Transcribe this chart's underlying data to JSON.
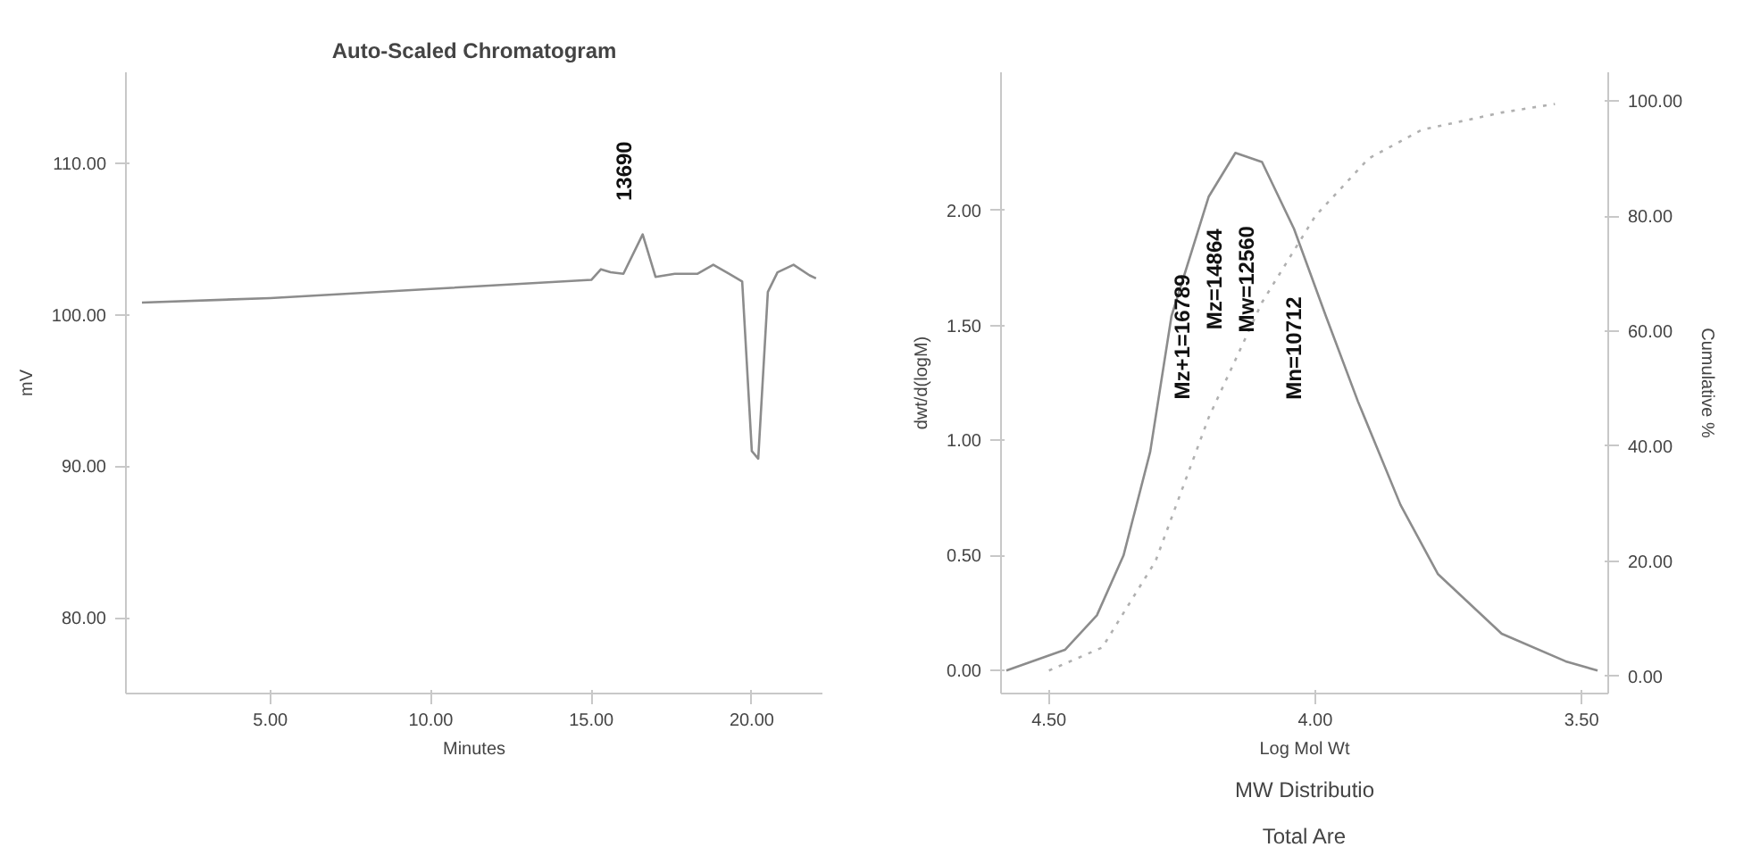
{
  "chart_data": [
    {
      "type": "line",
      "title": "Auto-Scaled Chromatogram",
      "xlabel": "Minutes",
      "ylabel": "mV",
      "xlim": [
        0.5,
        22.2
      ],
      "ylim": [
        75,
        116
      ],
      "xticks": [
        {
          "value": 5,
          "label": "5.00"
        },
        {
          "value": 10,
          "label": "10.00"
        },
        {
          "value": 15,
          "label": "15.00"
        },
        {
          "value": 20,
          "label": "20.00"
        }
      ],
      "yticks": [
        {
          "value": 80,
          "label": "80.00"
        },
        {
          "value": 90,
          "label": "90.00"
        },
        {
          "value": 100,
          "label": "100.00"
        },
        {
          "value": 110,
          "label": "110.00"
        }
      ],
      "grid": false,
      "marker": "none",
      "line_style": "solid",
      "series": [
        {
          "color": "#8c8c8c",
          "x": [
            1.0,
            5.0,
            10.0,
            15.0,
            15.3,
            15.6,
            16.0,
            16.6,
            17.0,
            17.6,
            18.3,
            18.8,
            19.3,
            19.7,
            20.0,
            20.2,
            20.5,
            20.8,
            21.3,
            21.8,
            22.0
          ],
          "values": [
            100.8,
            101.1,
            101.7,
            102.3,
            103.0,
            102.8,
            102.7,
            105.3,
            102.5,
            102.7,
            102.7,
            103.3,
            102.7,
            102.2,
            91.0,
            90.5,
            101.5,
            102.8,
            103.3,
            102.6,
            102.4
          ]
        }
      ],
      "annotations": [
        "13690"
      ]
    },
    {
      "type": "line",
      "xlabel": "Log Mol Wt",
      "ylabel": "dwt/d(logM)",
      "y2label": "Cumulative %",
      "xlim": [
        4.59,
        3.45
      ],
      "ylim": [
        -0.1,
        2.6
      ],
      "y2lim": [
        -3,
        105
      ],
      "xticks": [
        {
          "value": 4.5,
          "label": "4.50"
        },
        {
          "value": 4.0,
          "label": "4.00"
        },
        {
          "value": 3.5,
          "label": "3.50"
        }
      ],
      "yticks": [
        {
          "value": 0,
          "label": "0.00"
        },
        {
          "value": 0.5,
          "label": "0.50"
        },
        {
          "value": 1.0,
          "label": "1.00"
        },
        {
          "value": 1.5,
          "label": "1.50"
        },
        {
          "value": 2.0,
          "label": "2.00"
        }
      ],
      "y2ticks": [
        {
          "value": 0,
          "label": "0.00"
        },
        {
          "value": 20,
          "label": "20.00"
        },
        {
          "value": 40,
          "label": "40.00"
        },
        {
          "value": 60,
          "label": "60.00"
        },
        {
          "value": 80,
          "label": "80.00"
        },
        {
          "value": 100,
          "label": "100.00"
        }
      ],
      "grid": false,
      "marker": "none",
      "series": [
        {
          "color": "#8c8c8c",
          "line_style": "solid",
          "x": [
            4.58,
            4.47,
            4.41,
            4.36,
            4.31,
            4.27,
            4.2,
            4.15,
            4.1,
            4.04,
            3.98,
            3.92,
            3.84,
            3.77,
            3.65,
            3.53,
            3.47
          ],
          "values": [
            0.0,
            0.09,
            0.24,
            0.5,
            0.95,
            1.54,
            2.06,
            2.25,
            2.21,
            1.92,
            1.54,
            1.17,
            0.72,
            0.42,
            0.16,
            0.04,
            0.0
          ]
        },
        {
          "color": "#b0b0b0",
          "line_style": "dotted",
          "axis": "y2",
          "x": [
            4.5,
            4.4,
            4.3,
            4.2,
            4.1,
            4.0,
            3.9,
            3.8,
            3.65,
            3.55
          ],
          "values": [
            1,
            5,
            20,
            45,
            65,
            80,
            90,
            95,
            98,
            99.5
          ]
        }
      ],
      "annotations": [
        "Mz+1=16789",
        "Mz=14864",
        "Mw=12560",
        "Mn=10712",
        "MW Distributio",
        "Total Are"
      ]
    }
  ]
}
